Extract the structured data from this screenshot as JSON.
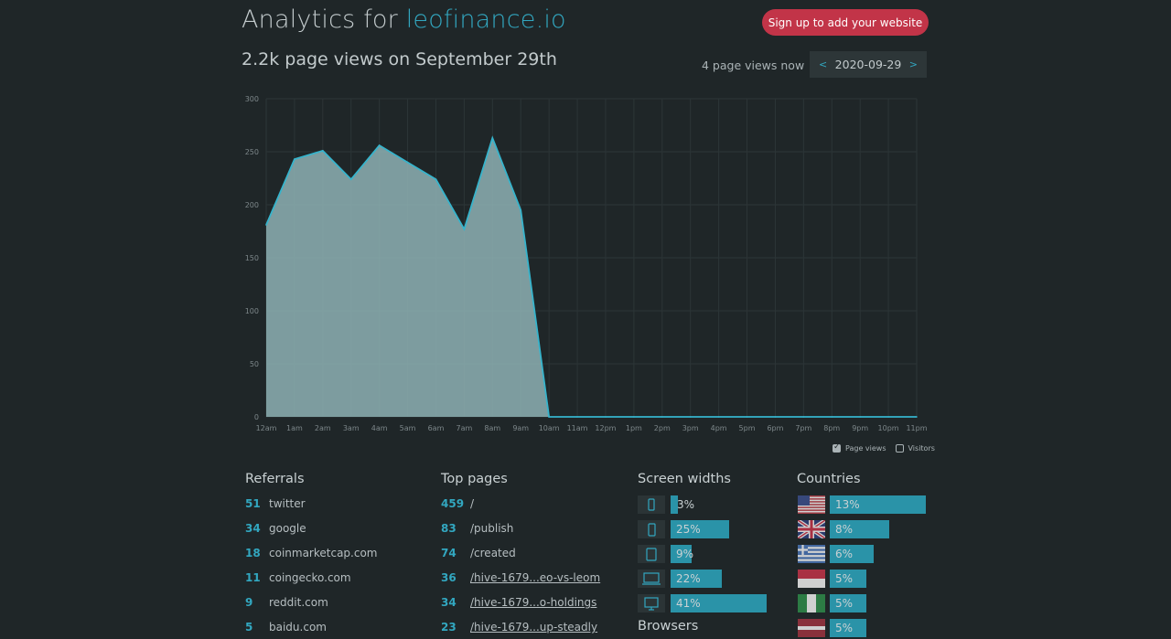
{
  "header": {
    "title_prefix": "Analytics for ",
    "domain": "leofinance.io",
    "signup_label": "Sign up to add your website",
    "subtitle": "2.2k page views on September 29th",
    "now_text": "4 page views now",
    "date": "2020-09-29",
    "prev_arrow": "<",
    "next_arrow": ">"
  },
  "chart_data": {
    "type": "area",
    "x": [
      "12am",
      "1am",
      "2am",
      "3am",
      "4am",
      "5am",
      "6am",
      "7am",
      "8am",
      "9am",
      "10am",
      "11am",
      "12pm",
      "1pm",
      "2pm",
      "3pm",
      "4pm",
      "5pm",
      "6pm",
      "7pm",
      "8pm",
      "9pm",
      "10pm",
      "11pm"
    ],
    "series": [
      {
        "name": "Page views",
        "values": [
          181,
          243,
          251,
          224,
          256,
          240,
          224,
          177,
          263,
          195,
          0,
          0,
          0,
          0,
          0,
          0,
          0,
          0,
          0,
          0,
          0,
          0,
          0,
          0
        ]
      }
    ],
    "yticks": [
      0,
      50,
      100,
      150,
      200,
      250,
      300
    ],
    "ylim": [
      0,
      300
    ],
    "grid": true,
    "legend_position": "bottom-right",
    "colors": {
      "fill": "#8eb1b4",
      "line": "#36b4cc"
    }
  },
  "legend": {
    "page_views": "Page views",
    "visitors": "Visitors"
  },
  "referrals": {
    "title": "Referrals",
    "items": [
      {
        "count": "51",
        "label": "twitter"
      },
      {
        "count": "34",
        "label": "google"
      },
      {
        "count": "18",
        "label": "coinmarketcap.com"
      },
      {
        "count": "11",
        "label": "coingecko.com"
      },
      {
        "count": "9",
        "label": "reddit.com"
      },
      {
        "count": "5",
        "label": "baidu.com"
      }
    ]
  },
  "top_pages": {
    "title": "Top pages",
    "items": [
      {
        "count": "459",
        "label": "/"
      },
      {
        "count": "83",
        "label": "/publish"
      },
      {
        "count": "74",
        "label": "/created"
      },
      {
        "count": "36",
        "label": "/hive-1679...eo-vs-leom"
      },
      {
        "count": "34",
        "label": "/hive-1679...o-holdings"
      },
      {
        "count": "23",
        "label": "/hive-1679...up-steadly"
      }
    ]
  },
  "screen_widths": {
    "title": "Screen widths",
    "items": [
      {
        "icon": "phone-small-icon",
        "pct": "3%",
        "value": 3
      },
      {
        "icon": "phone-icon",
        "pct": "25%",
        "value": 25
      },
      {
        "icon": "tablet-icon",
        "pct": "9%",
        "value": 9
      },
      {
        "icon": "laptop-icon",
        "pct": "22%",
        "value": 22
      },
      {
        "icon": "desktop-icon",
        "pct": "41%",
        "value": 41
      }
    ]
  },
  "browsers": {
    "title": "Browsers"
  },
  "countries": {
    "title": "Countries",
    "items": [
      {
        "flag": "us-flag-icon",
        "pct": "13%",
        "value": 13
      },
      {
        "flag": "uk-flag-icon",
        "pct": "8%",
        "value": 8
      },
      {
        "flag": "greece-flag-icon",
        "pct": "6%",
        "value": 6
      },
      {
        "flag": "indonesia-flag-icon",
        "pct": "5%",
        "value": 5
      },
      {
        "flag": "nigeria-flag-icon",
        "pct": "5%",
        "value": 5
      },
      {
        "flag": "latvia-flag-icon",
        "pct": "5%",
        "value": 5
      }
    ]
  }
}
